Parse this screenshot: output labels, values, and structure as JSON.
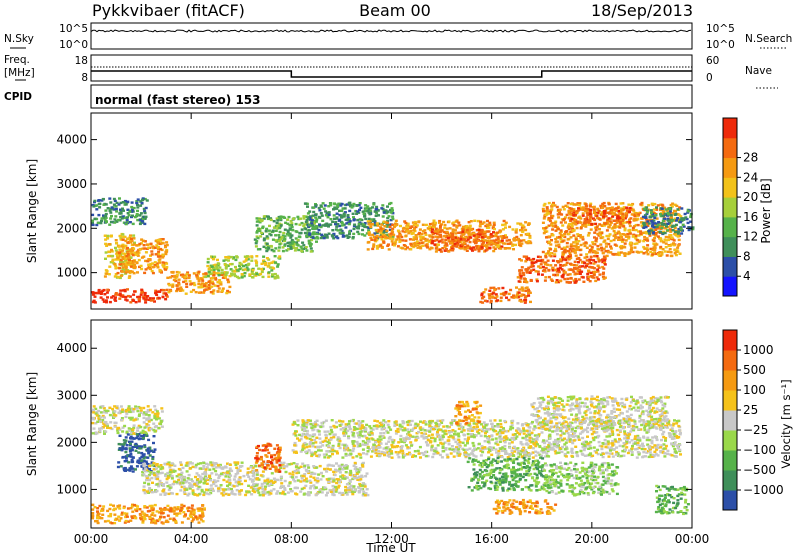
{
  "header": {
    "station": "Pykkvibaer (fitACF)",
    "beam": "Beam 00",
    "date": "18/Sep/2013"
  },
  "status_panel": {
    "nsky_label": "N.Sky",
    "nsky_ticks": [
      "10^5",
      "10^0"
    ],
    "nsearch_label": "N.Search",
    "nsearch_ticks": [
      "10^5",
      "10^0"
    ],
    "freq_label": "Freq.",
    "freq_unit": "[MHz]",
    "freq_ticks": [
      "18",
      "8"
    ],
    "nave_label": "Nave",
    "nave_ticks": [
      "60",
      "0"
    ],
    "cpid_label": "CPID",
    "cpid_text": "normal (fast stereo) 153"
  },
  "chart_data": [
    {
      "type": "heatmap",
      "name": "power-panel",
      "ylabel": "Slant Range [km]",
      "ylim": [
        180,
        4600
      ],
      "yticks": [
        1000,
        2000,
        3000,
        4000
      ],
      "ytick_labels": [
        "1000",
        "2000",
        "3000",
        "4000"
      ],
      "x_range_hours": [
        0,
        24
      ],
      "colorbar": {
        "label": "Power [dB]",
        "range": [
          0,
          32
        ],
        "tick_labels": [
          "4",
          "8",
          "12",
          "16",
          "20",
          "24",
          "28"
        ],
        "colors": [
          "#1414ff",
          "#2c4fa8",
          "#3f8f5a",
          "#56b24a",
          "#a6cf3a",
          "#f2c21a",
          "#f59a12",
          "#f46a10",
          "#ee2a0a"
        ]
      },
      "bands": [
        {
          "t0": 0.0,
          "t1": 2.2,
          "r0": 2100,
          "r1": 2700,
          "level": 2
        },
        {
          "t0": 0.0,
          "t1": 3.0,
          "r0": 350,
          "r1": 650,
          "level": 8
        },
        {
          "t0": 0.5,
          "t1": 1.7,
          "r0": 900,
          "r1": 1900,
          "level": 5
        },
        {
          "t0": 1.0,
          "t1": 3.0,
          "r0": 1000,
          "r1": 1800,
          "level": 6
        },
        {
          "t0": 3.0,
          "t1": 5.5,
          "r0": 550,
          "r1": 1050,
          "level": 6
        },
        {
          "t0": 4.5,
          "t1": 7.5,
          "r0": 900,
          "r1": 1400,
          "level": 4
        },
        {
          "t0": 6.5,
          "t1": 9.0,
          "r0": 1500,
          "r1": 2300,
          "level": 3
        },
        {
          "t0": 8.5,
          "t1": 12.0,
          "r0": 1800,
          "r1": 2600,
          "level": 2
        },
        {
          "t0": 11.0,
          "t1": 17.5,
          "r0": 1550,
          "r1": 2200,
          "level": 6
        },
        {
          "t0": 13.5,
          "t1": 16.5,
          "r0": 1500,
          "r1": 2000,
          "level": 7
        },
        {
          "t0": 15.5,
          "t1": 17.5,
          "r0": 350,
          "r1": 700,
          "level": 7
        },
        {
          "t0": 17.0,
          "t1": 20.5,
          "r0": 800,
          "r1": 1400,
          "level": 7
        },
        {
          "t0": 18.0,
          "t1": 23.5,
          "r0": 1400,
          "r1": 2600,
          "level": 6
        },
        {
          "t0": 19.0,
          "t1": 21.5,
          "r0": 2100,
          "r1": 2500,
          "level": 7
        },
        {
          "t0": 22.0,
          "t1": 24.0,
          "r0": 1900,
          "r1": 2500,
          "level": 2
        }
      ]
    },
    {
      "type": "heatmap",
      "name": "velocity-panel",
      "ylabel": "Slant Range [km]",
      "ylim": [
        180,
        4600
      ],
      "yticks": [
        1000,
        2000,
        3000,
        4000
      ],
      "ytick_labels": [
        "1000",
        "2000",
        "3000",
        "4000"
      ],
      "x_range_hours": [
        0,
        24
      ],
      "colorbar": {
        "label": "Velocity [m s⁻¹]",
        "tick_labels": [
          "1000",
          "500",
          "100",
          "25",
          "−25",
          "−100",
          "−500",
          "−1000"
        ],
        "colors": [
          "#2c4fa8",
          "#3f8f5a",
          "#56b24a",
          "#9ad84a",
          "#c8c8c8",
          "#f5c21a",
          "#f59a12",
          "#f46a10",
          "#ee2a0a"
        ]
      },
      "bands": [
        {
          "t0": 0.0,
          "t1": 2.8,
          "r0": 2200,
          "r1": 2800,
          "level": 4
        },
        {
          "t0": 0.0,
          "t1": 4.5,
          "r0": 300,
          "r1": 700,
          "level": 6
        },
        {
          "t0": 1.0,
          "t1": 2.5,
          "r0": 1400,
          "r1": 2200,
          "level": 0
        },
        {
          "t0": 2.0,
          "t1": 11.0,
          "r0": 900,
          "r1": 1600,
          "level": 4
        },
        {
          "t0": 6.5,
          "t1": 7.5,
          "r0": 1400,
          "r1": 2000,
          "level": 7
        },
        {
          "t0": 8.0,
          "t1": 23.5,
          "r0": 1700,
          "r1": 2500,
          "level": 4
        },
        {
          "t0": 14.5,
          "t1": 15.5,
          "r0": 2400,
          "r1": 2900,
          "level": 6
        },
        {
          "t0": 15.0,
          "t1": 18.0,
          "r0": 1000,
          "r1": 1700,
          "level": 2
        },
        {
          "t0": 16.0,
          "t1": 18.5,
          "r0": 500,
          "r1": 800,
          "level": 6
        },
        {
          "t0": 17.5,
          "t1": 23.0,
          "r0": 2300,
          "r1": 3000,
          "level": 4
        },
        {
          "t0": 18.0,
          "t1": 21.0,
          "r0": 900,
          "r1": 1600,
          "level": 3
        },
        {
          "t0": 22.5,
          "t1": 23.8,
          "r0": 500,
          "r1": 1100,
          "level": 2
        }
      ]
    }
  ],
  "time_axis": {
    "label": "Time UT",
    "ticks": [
      "00:00",
      "04:00",
      "08:00",
      "12:00",
      "16:00",
      "20:00",
      "00:00"
    ]
  }
}
